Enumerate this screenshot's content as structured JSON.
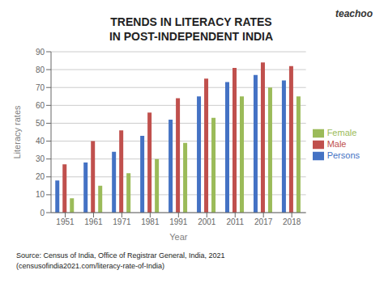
{
  "chart_data": {
    "type": "bar",
    "title": "TRENDS IN LITERACY RATES",
    "subtitle": "IN POST-INDEPENDENT INDIA",
    "x_label": "Year",
    "y_label": "Literacy rates",
    "categories": [
      "1951",
      "1961",
      "1971",
      "1981",
      "1991",
      "2001",
      "2011",
      "2017",
      "2018"
    ],
    "series": [
      {
        "name": "Persons",
        "color": "#4472C4",
        "values": [
          18,
          28,
          34,
          43,
          52,
          65,
          73,
          77,
          74
        ]
      },
      {
        "name": "Male",
        "color": "#C0504D",
        "values": [
          27,
          40,
          46,
          56,
          64,
          75,
          81,
          84,
          82
        ]
      },
      {
        "name": "Female",
        "color": "#9BBB59",
        "values": [
          8,
          15,
          22,
          30,
          39,
          53,
          65,
          70,
          65
        ]
      }
    ],
    "ylim": [
      0,
      90
    ],
    "yticks": [
      0,
      10,
      20,
      30,
      40,
      50,
      60,
      70,
      80,
      90
    ],
    "grid": true,
    "legend": "right",
    "annotations": [
      "teachoo",
      "Source: Census of India, Office of Registrar General, India, 2021",
      "(censusofindia2021.com/literacy-rate-of-India)"
    ]
  }
}
